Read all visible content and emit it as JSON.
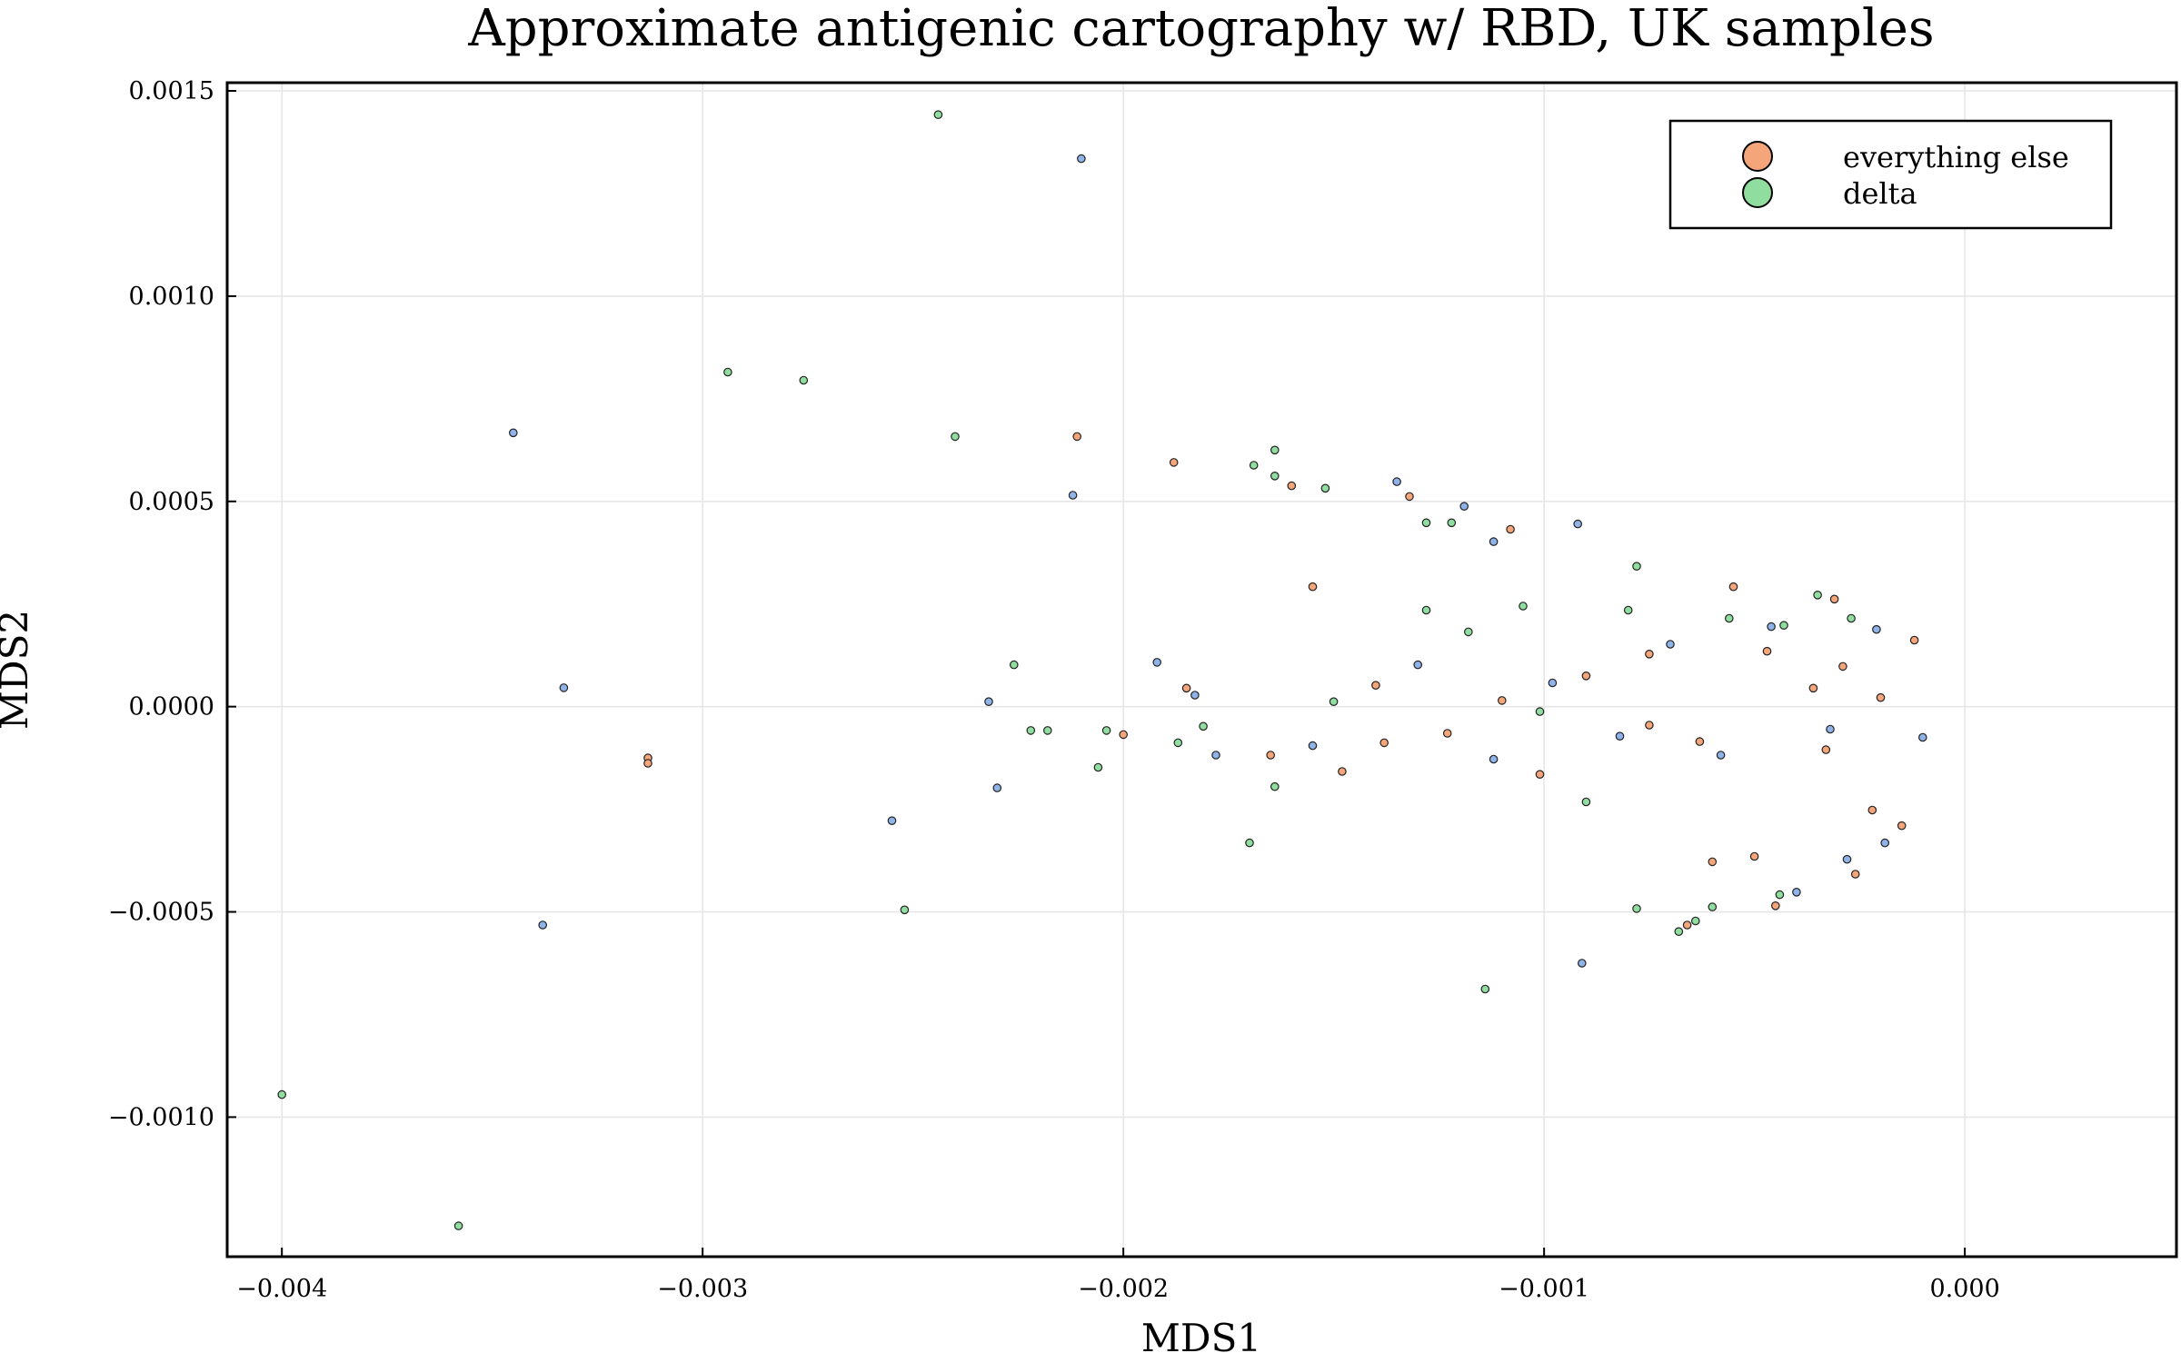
{
  "chart_data": {
    "type": "scatter",
    "title": "Approximate antigenic cartography w/ RBD, UK samples",
    "xlabel": "MDS1",
    "ylabel": "MDS2",
    "xlim": [
      -0.00413,
      0.000503
    ],
    "ylim": [
      -0.00134,
      0.00152
    ],
    "grid": true,
    "legend_position": "top-right",
    "x_ticks": [
      {
        "value": -0.004,
        "label": "−0.004"
      },
      {
        "value": -0.003,
        "label": "−0.003"
      },
      {
        "value": -0.002,
        "label": "−0.002"
      },
      {
        "value": -0.001,
        "label": "−0.001"
      },
      {
        "value": 0.0,
        "label": "0.000"
      }
    ],
    "y_ticks": [
      {
        "value": 0.0015,
        "label": "0.0015"
      },
      {
        "value": 0.001,
        "label": "0.0010"
      },
      {
        "value": 0.0005,
        "label": "0.0005"
      },
      {
        "value": 0.0,
        "label": "0.0000"
      },
      {
        "value": -0.0005,
        "label": "−0.0005"
      },
      {
        "value": -0.001,
        "label": "−0.0010"
      }
    ],
    "series": [
      {
        "name": "",
        "color": "#8fb3e8",
        "points": [
          [
            -0.00345,
            0.000667
          ],
          [
            -0.00333,
            4.6e-05
          ],
          [
            -0.00338,
            -0.000532
          ],
          [
            -0.0021,
            0.001335
          ],
          [
            -0.00212,
            0.000515
          ],
          [
            -0.00255,
            -0.000278
          ],
          [
            -0.00232,
            1.2e-05
          ],
          [
            -0.0023,
            -0.000198
          ],
          [
            -0.00192,
            0.000108
          ],
          [
            -0.00183,
            2.8e-05
          ],
          [
            -0.00178,
            -0.000118
          ],
          [
            -0.00135,
            0.000548
          ],
          [
            -0.00119,
            0.000488
          ],
          [
            -0.00092,
            0.000445
          ],
          [
            -0.00091,
            -0.000625
          ],
          [
            -0.00155,
            -9.5e-05
          ],
          [
            -0.0013,
            0.000102
          ],
          [
            -0.00112,
            -0.000128
          ],
          [
            -0.00098,
            5.8e-05
          ],
          [
            -0.00082,
            -7.2e-05
          ],
          [
            -0.0007,
            0.000152
          ],
          [
            -0.00058,
            -0.000118
          ],
          [
            -0.00046,
            0.000195
          ],
          [
            -0.00032,
            -5.5e-05
          ],
          [
            -0.00021,
            0.000188
          ],
          [
            -0.0001,
            -7.5e-05
          ],
          [
            -0.0004,
            -0.000452
          ],
          [
            -0.00028,
            -0.000372
          ],
          [
            -0.00019,
            -0.000332
          ],
          [
            -0.00112,
            0.000402
          ]
        ]
      },
      {
        "name": "everything else",
        "color": "#f4a57a",
        "points": [
          [
            -0.00313,
            -0.000125
          ],
          [
            -0.00313,
            -0.000138
          ],
          [
            -0.00211,
            0.000658
          ],
          [
            -0.00188,
            0.000595
          ],
          [
            -0.0016,
            0.000538
          ],
          [
            -0.00155,
            0.000292
          ],
          [
            -0.00132,
            0.000512
          ],
          [
            -0.00108,
            0.000432
          ],
          [
            -0.002,
            -6.8e-05
          ],
          [
            -0.00185,
            4.5e-05
          ],
          [
            -0.00165,
            -0.000118
          ],
          [
            -0.00148,
            -0.000158
          ],
          [
            -0.0014,
            5.2e-05
          ],
          [
            -0.00123,
            -6.5e-05
          ],
          [
            -0.00101,
            -0.000165
          ],
          [
            -0.0009,
            7.5e-05
          ],
          [
            -0.00075,
            0.000128
          ],
          [
            -0.00063,
            -8.5e-05
          ],
          [
            -0.00055,
            0.000292
          ],
          [
            -0.00047,
            0.000135
          ],
          [
            -0.00036,
            4.5e-05
          ],
          [
            -0.00029,
            9.8e-05
          ],
          [
            -0.0002,
            2.2e-05
          ],
          [
            -0.00012,
            0.000162
          ],
          [
            -0.00031,
            0.000262
          ],
          [
            -0.00022,
            -0.000252
          ],
          [
            -0.0006,
            -0.000378
          ],
          [
            -0.0005,
            -0.000365
          ],
          [
            -0.00026,
            -0.000408
          ],
          [
            -0.00066,
            -0.000532
          ],
          [
            -0.00045,
            -0.000485
          ],
          [
            -0.00015,
            -0.00029
          ],
          [
            -0.00033,
            -0.000105
          ],
          [
            -0.0011,
            1.5e-05
          ],
          [
            -0.00138,
            -8.8e-05
          ],
          [
            -0.00075,
            -4.5e-05
          ]
        ]
      },
      {
        "name": "delta",
        "color": "#8fdea0",
        "points": [
          [
            -0.004,
            -0.000945
          ],
          [
            -0.00358,
            -0.001265
          ],
          [
            -0.00294,
            0.000815
          ],
          [
            -0.00276,
            0.000795
          ],
          [
            -0.00244,
            0.001442
          ],
          [
            -0.0024,
            0.000658
          ],
          [
            -0.00226,
            0.000102
          ],
          [
            -0.00222,
            -5.8e-05
          ],
          [
            -0.00218,
            -5.8e-05
          ],
          [
            -0.00206,
            -0.000148
          ],
          [
            -0.00204,
            -5.8e-05
          ],
          [
            -0.00252,
            -0.000495
          ],
          [
            -0.00187,
            -8.8e-05
          ],
          [
            -0.00181,
            -4.8e-05
          ],
          [
            -0.0017,
            -0.000332
          ],
          [
            -0.00169,
            0.000588
          ],
          [
            -0.00164,
            0.000625
          ],
          [
            -0.00164,
            0.000562
          ],
          [
            -0.00152,
            0.000532
          ],
          [
            -0.00114,
            -0.000688
          ],
          [
            -0.00128,
            0.000448
          ],
          [
            -0.00122,
            0.000448
          ],
          [
            -0.00105,
            0.000245
          ],
          [
            -0.00078,
            0.000342
          ],
          [
            -0.0009,
            -0.000232
          ],
          [
            -0.00078,
            -0.000492
          ],
          [
            -0.00068,
            -0.000548
          ],
          [
            -0.00064,
            -0.000522
          ],
          [
            -0.0006,
            -0.000488
          ],
          [
            -0.00044,
            -0.000458
          ],
          [
            -0.00164,
            -0.000195
          ],
          [
            -0.0015,
            1.2e-05
          ],
          [
            -0.00128,
            0.000235
          ],
          [
            -0.00118,
            0.000182
          ],
          [
            -0.00101,
            -1.2e-05
          ],
          [
            -0.0008,
            0.000235
          ],
          [
            -0.00056,
            0.000215
          ],
          [
            -0.00043,
            0.000198
          ],
          [
            -0.00035,
            0.000272
          ],
          [
            -0.00027,
            0.000215
          ]
        ]
      }
    ]
  },
  "legend": {
    "items": [
      {
        "label": "everything else",
        "color": "#f4a57a"
      },
      {
        "label": "delta",
        "color": "#8fdea0"
      }
    ]
  }
}
